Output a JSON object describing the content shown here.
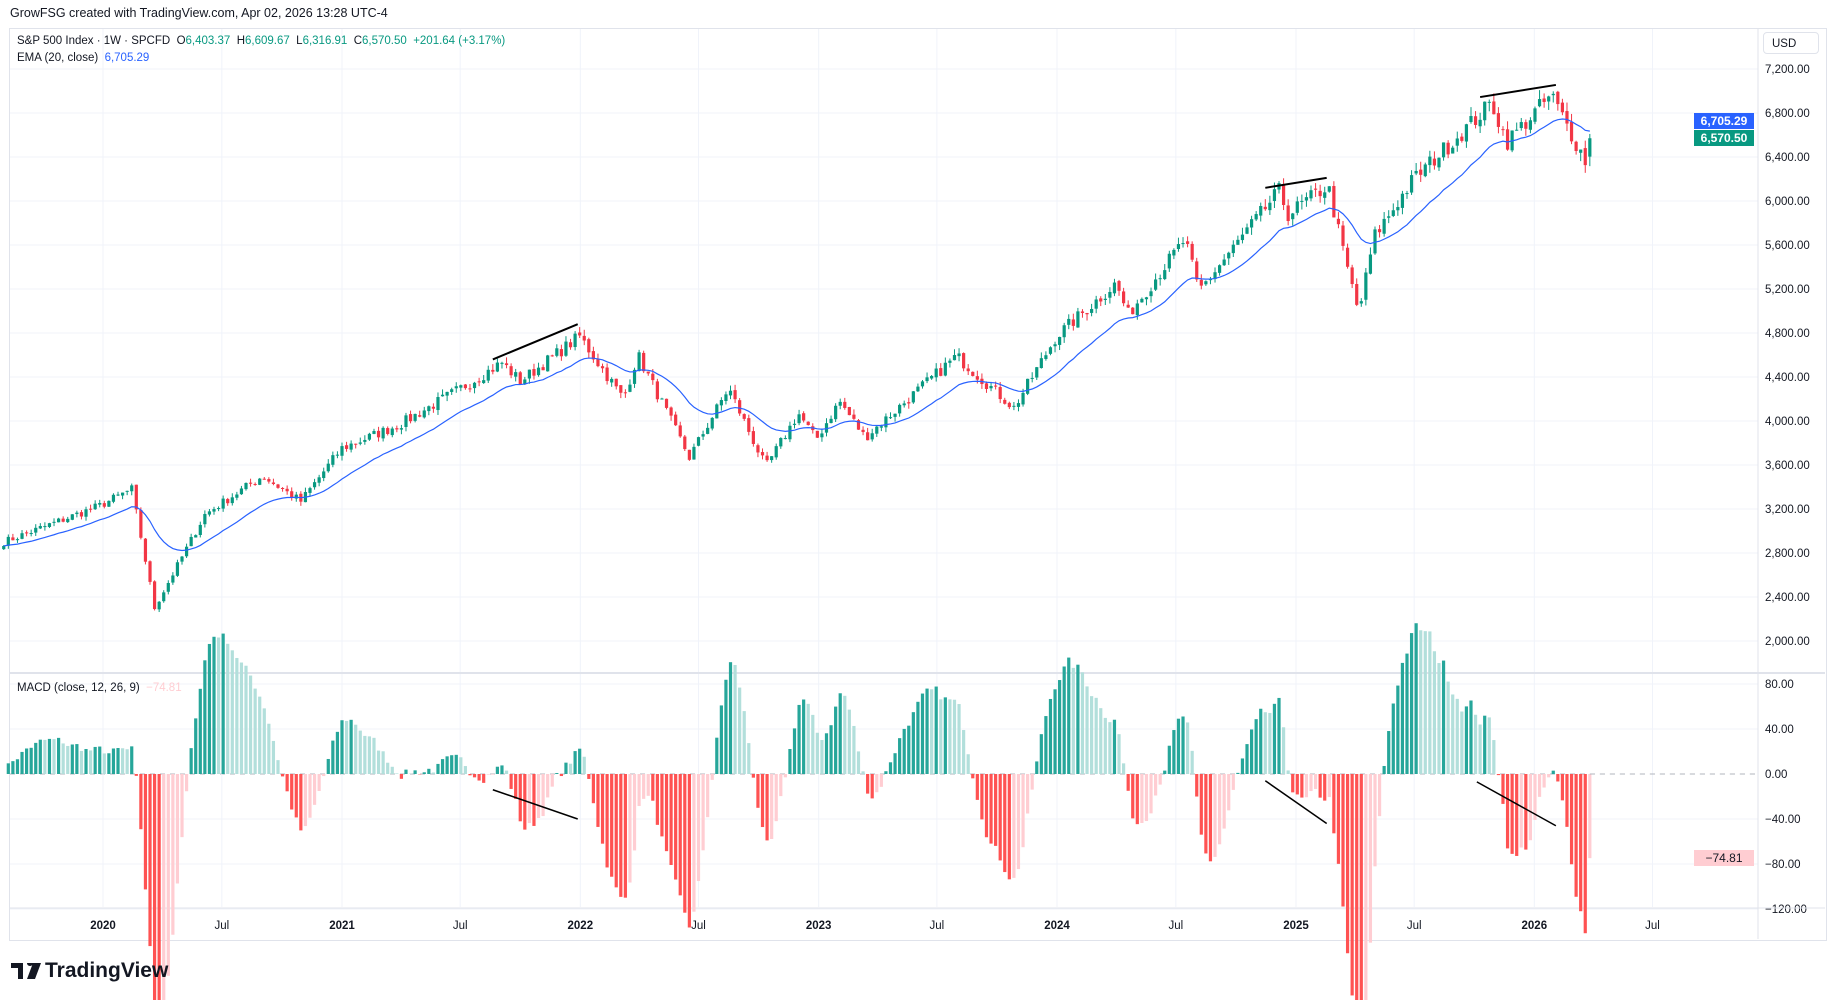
{
  "credit": "GrowFSG created with TradingView.com, Apr 02, 2026 13:28 UTC-4",
  "legend": {
    "symbol": "S&P 500 Index · 1W · SPCFD",
    "o_label": "O",
    "open": "6,403.37",
    "h_label": "H",
    "high": "6,609.67",
    "l_label": "L",
    "low": "6,316.91",
    "c_label": "C",
    "close": "6,570.50",
    "change": "+201.64 (+3.17%)",
    "ema_label": "EMA (20, close)",
    "ema_value": "6,705.29",
    "macd_label": "MACD (close, 12, 26, 9)",
    "macd_value": "−74.81"
  },
  "currency": "USD",
  "price_tags": {
    "ema": "6,705.29",
    "close": "6,570.50",
    "macd": "−74.81"
  },
  "brand": "TradingView",
  "colors": {
    "up": "#089981",
    "down": "#f23645",
    "ema": "#2962ff",
    "hist_up_strong": "#26a69a",
    "hist_up_weak": "#b2dfdb",
    "hist_down_strong": "#ff5252",
    "hist_down_weak": "#ffcdd2"
  },
  "chart_data": {
    "type": "candlestick",
    "interval": "1W",
    "x_start": "2019-08-02",
    "x_end": "2026-03-30",
    "close_anchors": [
      [
        "2019-08-02",
        2900
      ],
      [
        "2019-12-27",
        3230
      ],
      [
        "2020-02-14",
        3380
      ],
      [
        "2020-03-20",
        2300
      ],
      [
        "2020-06-05",
        3150
      ],
      [
        "2020-09-01",
        3500
      ],
      [
        "2020-10-30",
        3270
      ],
      [
        "2020-12-31",
        3750
      ],
      [
        "2021-03-31",
        3970
      ],
      [
        "2021-06-30",
        4290
      ],
      [
        "2021-09-03",
        4530
      ],
      [
        "2021-10-01",
        4360
      ],
      [
        "2021-12-31",
        4770
      ],
      [
        "2022-03-08",
        4200
      ],
      [
        "2022-03-30",
        4600
      ],
      [
        "2022-06-17",
        3670
      ],
      [
        "2022-08-16",
        4300
      ],
      [
        "2022-10-12",
        3580
      ],
      [
        "2022-12-01",
        4070
      ],
      [
        "2022-12-28",
        3830
      ],
      [
        "2023-02-02",
        4180
      ],
      [
        "2023-03-13",
        3850
      ],
      [
        "2023-07-31",
        4590
      ],
      [
        "2023-10-27",
        4120
      ],
      [
        "2023-12-31",
        4770
      ],
      [
        "2024-03-31",
        5250
      ],
      [
        "2024-04-19",
        4970
      ],
      [
        "2024-07-15",
        5650
      ],
      [
        "2024-08-05",
        5180
      ],
      [
        "2024-12-06",
        6090
      ],
      [
        "2024-12-20",
        5880
      ],
      [
        "2025-02-19",
        6140
      ],
      [
        "2025-03-14",
        5550
      ],
      [
        "2025-04-07",
        4980
      ],
      [
        "2025-05-01",
        5680
      ],
      [
        "2025-06-30",
        6200
      ],
      [
        "2025-10-28",
        6890
      ],
      [
        "2025-11-20",
        6540
      ],
      [
        "2026-01-27",
        6960
      ],
      [
        "2026-03-20",
        6370
      ],
      [
        "2026-03-30",
        6570.5
      ]
    ],
    "last_bar": {
      "open": 6403.37,
      "high": 6609.67,
      "low": 6316.91,
      "close": 6570.5
    },
    "ema_period": 20,
    "macd": {
      "fast": 12,
      "slow": 26,
      "signal": 9,
      "last": -74.81
    },
    "price_ticks": [
      2000,
      2400,
      2800,
      3200,
      3600,
      4000,
      4400,
      4800,
      5200,
      5600,
      6000,
      6400,
      6800,
      7200
    ],
    "price_tick_labels": [
      "2,000.00",
      "2,400.00",
      "2,800.00",
      "3,200.00",
      "3,600.00",
      "4,000.00",
      "4,400.00",
      "4,800.00",
      "5,200.00",
      "5,600.00",
      "6,000.00",
      "6,400.00",
      "6,800.00",
      "7,200.00"
    ],
    "macd_ticks": [
      80,
      40,
      0,
      -40,
      -80,
      -120
    ],
    "macd_tick_labels": [
      "80.00",
      "40.00",
      "0.00",
      "−40.00",
      "−80.00",
      "−120.00"
    ],
    "x_ticks": [
      [
        "2020-01-01",
        "2020"
      ],
      [
        "2020-07-01",
        "Jul"
      ],
      [
        "2021-01-01",
        "2021"
      ],
      [
        "2021-07-01",
        "Jul"
      ],
      [
        "2022-01-01",
        "2022"
      ],
      [
        "2022-07-01",
        "Jul"
      ],
      [
        "2023-01-01",
        "2023"
      ],
      [
        "2023-07-01",
        "Jul"
      ],
      [
        "2024-01-01",
        "2024"
      ],
      [
        "2024-07-01",
        "Jul"
      ],
      [
        "2025-01-01",
        "2025"
      ],
      [
        "2025-07-01",
        "Jul"
      ],
      [
        "2026-01-01",
        "2026"
      ],
      [
        "2026-07-01",
        "Jul"
      ]
    ],
    "price_trendlines": [
      [
        [
          "2021-08-20",
          4560
        ],
        [
          "2021-12-28",
          4880
        ]
      ],
      [
        [
          "2024-11-15",
          6120
        ],
        [
          "2025-02-17",
          6210
        ]
      ],
      [
        [
          "2025-10-10",
          6945
        ],
        [
          "2026-02-03",
          7055
        ]
      ]
    ],
    "macd_trendlines": [
      [
        [
          "2021-08-20",
          -14
        ],
        [
          "2021-12-28",
          -40
        ]
      ],
      [
        [
          "2024-11-15",
          -6
        ],
        [
          "2025-02-17",
          -44
        ]
      ],
      [
        [
          "2025-10-05",
          -7
        ],
        [
          "2026-02-03",
          -46
        ]
      ]
    ]
  }
}
